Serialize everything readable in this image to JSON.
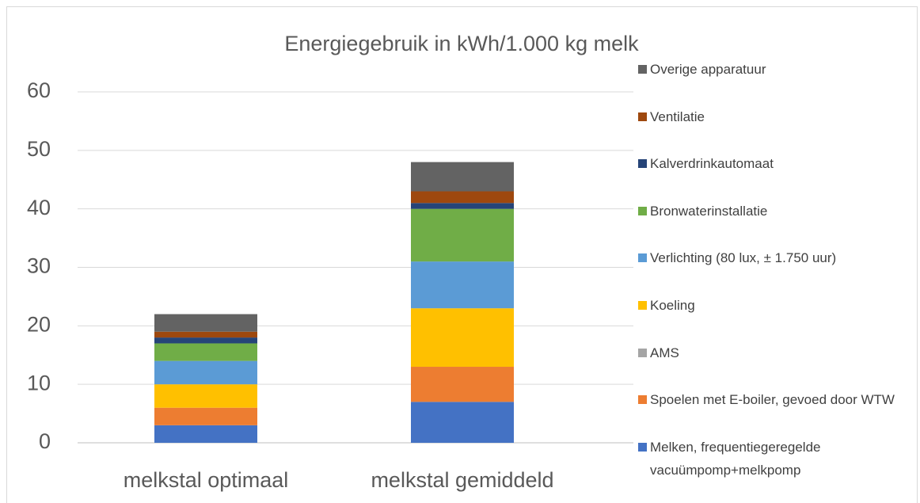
{
  "chart_data": {
    "type": "bar",
    "stacked": true,
    "title": "Energiegebruik in kWh/1.000 kg melk",
    "categories": [
      "melkstal optimaal",
      "melkstal gemiddeld"
    ],
    "series": [
      {
        "name": "Melken, frequentiegeregelde vacuümpomp+melkpomp",
        "color": "#4472c4",
        "values": [
          3,
          7
        ]
      },
      {
        "name": "Spoelen met E-boiler, gevoed door WTW",
        "color": "#ed7d31",
        "values": [
          3,
          6
        ]
      },
      {
        "name": "AMS",
        "color": "#a5a5a5",
        "values": [
          0,
          0
        ]
      },
      {
        "name": "Koeling",
        "color": "#ffc000",
        "values": [
          4,
          10
        ]
      },
      {
        "name": "Verlichting (80 lux, ± 1.750 uur)",
        "color": "#5b9bd5",
        "values": [
          4,
          8
        ]
      },
      {
        "name": "Bronwaterinstallatie",
        "color": "#70ad47",
        "values": [
          3,
          9
        ]
      },
      {
        "name": "Kalverdrinkautomaat",
        "color": "#264478",
        "values": [
          1,
          1
        ]
      },
      {
        "name": "Ventilatie",
        "color": "#9e480e",
        "values": [
          1,
          2
        ]
      },
      {
        "name": "Overige apparatuur",
        "color": "#636363",
        "values": [
          3,
          5
        ]
      }
    ],
    "ylim": [
      0,
      60
    ],
    "yticks": [
      0,
      10,
      20,
      30,
      40,
      50,
      60
    ],
    "grid": true,
    "legend": "right"
  }
}
